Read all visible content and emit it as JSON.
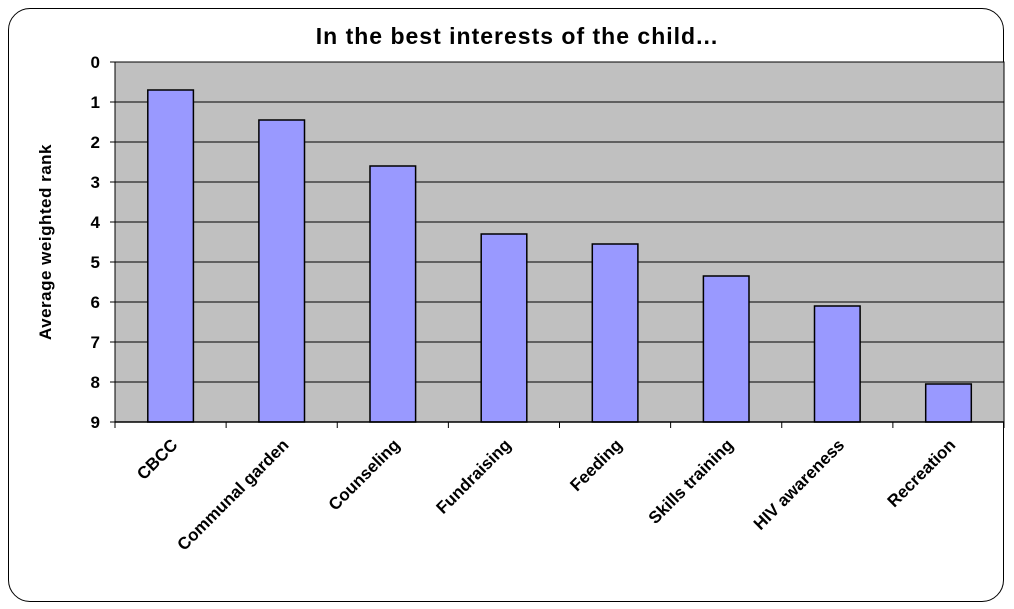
{
  "chart_data": {
    "type": "bar",
    "title": "In the best interests of the child...",
    "xlabel": "",
    "ylabel": "Average weighted rank",
    "ylim": [
      0,
      9
    ],
    "y_inverted": true,
    "yticks": [
      0,
      1,
      2,
      3,
      4,
      5,
      6,
      7,
      8,
      9
    ],
    "grid": true,
    "legend": "none",
    "categories": [
      "CBCC",
      "Communal garden",
      "Counseling",
      "Fundraising",
      "Feeding",
      "Skills training",
      "HIV awareness",
      "Recreation"
    ],
    "values": [
      0.7,
      1.45,
      2.6,
      4.3,
      4.55,
      5.35,
      6.1,
      8.05
    ],
    "colors": {
      "bar": "#9999ff",
      "plot_bg": "#c0c0c0",
      "grid": "#000000",
      "frame": "#000000"
    }
  }
}
